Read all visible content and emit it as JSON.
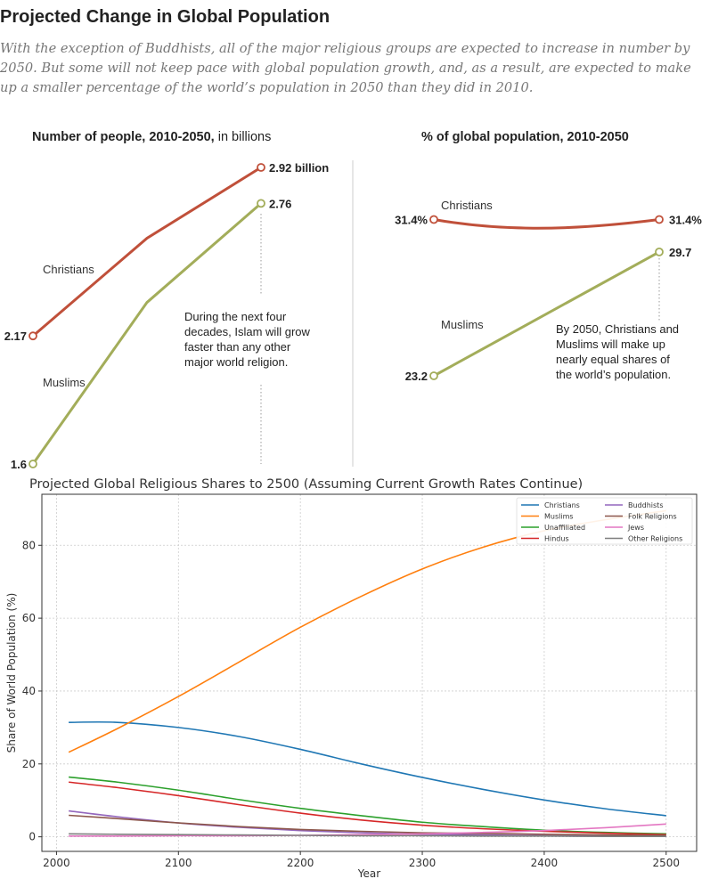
{
  "header": {
    "title": "Projected Change in Global Population",
    "subtitle": "With the exception of Buddhists, all of the major religious groups are expected to increase in number by 2050. But some will not keep pace with global population growth, and, as a result, are expected to make up a smaller percentage of the world’s population in 2050 than they did in 2010."
  },
  "colors": {
    "christians": "#c0503a",
    "muslims": "#a3ad5a"
  },
  "chart_data": [
    {
      "type": "line",
      "title_bold": "Number of people, 2010-2050,",
      "title_rest": " in billions",
      "x": [
        2010,
        2050
      ],
      "series": [
        {
          "name": "Christians",
          "values": [
            2.17,
            2.92
          ],
          "start_label": "2.17",
          "end_label": "2.92 billion"
        },
        {
          "name": "Muslims",
          "values": [
            1.6,
            2.76
          ],
          "start_label": "1.6",
          "end_label": "2.76"
        }
      ],
      "annotation": [
        "During the next four",
        "decades, Islam will grow",
        "faster than any other",
        "major world religion."
      ]
    },
    {
      "type": "line",
      "title": "% of global population, 2010-2050",
      "x": [
        2010,
        2050
      ],
      "series": [
        {
          "name": "Christians",
          "values": [
            31.4,
            31.4
          ],
          "start_label": "31.4%",
          "end_label": "31.4%"
        },
        {
          "name": "Muslims",
          "values": [
            23.2,
            29.7
          ],
          "start_label": "23.2",
          "end_label": "29.7"
        }
      ],
      "annotation": [
        "By 2050, Christians and",
        "Muslims will make up",
        "nearly equal shares of",
        "the world’s population."
      ]
    },
    {
      "type": "line",
      "title": "Projected Global Religious Shares to 2500 (Assuming Current Growth Rates Continue)",
      "xlabel": "Year",
      "ylabel": "Share of World Population (%)",
      "xlim": [
        1988,
        2525
      ],
      "ylim": [
        -4,
        94
      ],
      "xticks": [
        2000,
        2100,
        2200,
        2300,
        2400,
        2500
      ],
      "yticks": [
        0,
        20,
        40,
        60,
        80
      ],
      "grid": true,
      "legend_position": "top-right",
      "x": [
        2010,
        2050,
        2100,
        2150,
        2200,
        2250,
        2300,
        2350,
        2400,
        2450,
        2500
      ],
      "series": [
        {
          "name": "Christians",
          "color": "#1f77b4",
          "values": [
            31.4,
            31.4,
            30.0,
            27.5,
            24.0,
            20.0,
            16.3,
            13.0,
            10.1,
            7.7,
            5.8
          ]
        },
        {
          "name": "Muslims",
          "color": "#ff7f0e",
          "values": [
            23.2,
            29.7,
            38.5,
            48.0,
            57.5,
            66.0,
            73.5,
            79.5,
            84.0,
            87.0,
            89.5
          ]
        },
        {
          "name": "Unaffiliated",
          "color": "#2ca02c",
          "values": [
            16.4,
            15.0,
            12.8,
            10.2,
            7.8,
            5.8,
            4.0,
            2.8,
            1.8,
            1.2,
            0.8
          ]
        },
        {
          "name": "Hindus",
          "color": "#d62728",
          "values": [
            15.0,
            13.5,
            11.3,
            8.8,
            6.5,
            4.6,
            3.2,
            2.2,
            1.5,
            1.0,
            0.6
          ]
        },
        {
          "name": "Buddhists",
          "color": "#9467bd",
          "values": [
            7.1,
            5.5,
            3.8,
            2.6,
            1.7,
            1.1,
            0.7,
            0.5,
            0.3,
            0.2,
            0.1
          ]
        },
        {
          "name": "Folk Religions",
          "color": "#8c564b",
          "values": [
            5.9,
            5.0,
            3.8,
            2.8,
            2.0,
            1.5,
            1.1,
            0.9,
            0.7,
            0.5,
            0.4
          ]
        },
        {
          "name": "Jews",
          "color": "#e377c2",
          "values": [
            0.2,
            0.2,
            0.3,
            0.3,
            0.4,
            0.6,
            0.8,
            1.2,
            1.7,
            2.5,
            3.5
          ]
        },
        {
          "name": "Other Religions",
          "color": "#7f7f7f",
          "values": [
            0.8,
            0.7,
            0.6,
            0.5,
            0.4,
            0.3,
            0.3,
            0.2,
            0.2,
            0.1,
            0.1
          ]
        }
      ]
    }
  ]
}
